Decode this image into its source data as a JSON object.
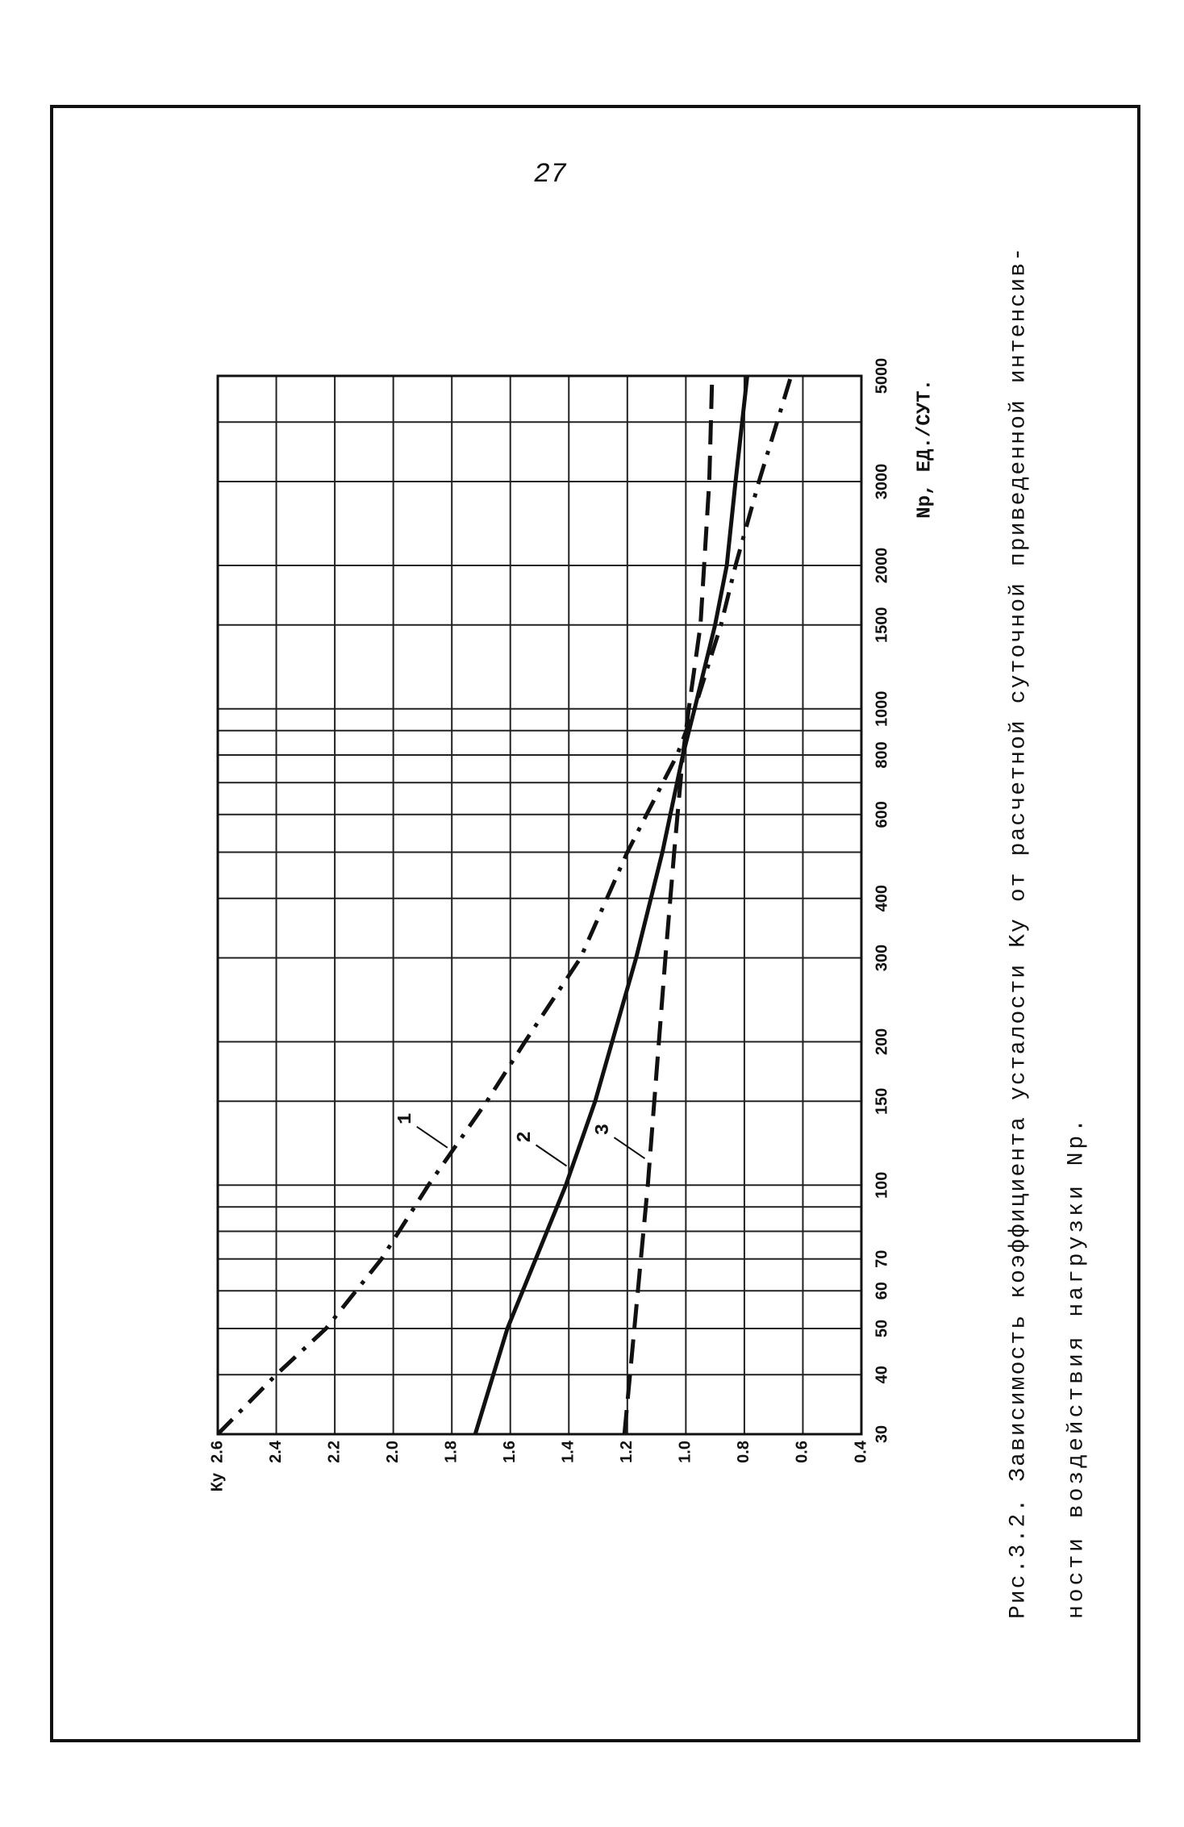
{
  "page": {
    "number": "27"
  },
  "chart_data": {
    "type": "line",
    "x_label": "Np, ЕД./СУТ.",
    "y_label": "Ку",
    "caption": [
      "Рис.3.2. Зависимость коэффициента усталости Kу от расчетной суточной приведенной интенсив-",
      "ности воздействия нагрузки Np."
    ],
    "xscale": "log",
    "xlim": [
      30,
      5000
    ],
    "ylim": [
      0.4,
      2.6
    ],
    "grid": true,
    "xticks": [
      30,
      40,
      50,
      60,
      70,
      {
        "value": 80,
        "label": null
      },
      {
        "value": 90,
        "label": null
      },
      100,
      150,
      200,
      300,
      400,
      {
        "value": 500,
        "label": null
      },
      600,
      {
        "value": 700,
        "label": null
      },
      800,
      {
        "value": 900,
        "label": null
      },
      1000,
      1500,
      2000,
      3000,
      {
        "value": 4000,
        "label": null
      },
      5000
    ],
    "yticks": [
      2.6,
      2.4,
      2.2,
      {
        "value": 2,
        "label": "2.0"
      },
      1.8,
      1.6,
      1.4,
      1.2,
      {
        "value": 1,
        "label": "1.0"
      },
      0.8,
      0.6,
      0.4
    ],
    "series": [
      {
        "name": "1",
        "color": "#111111",
        "style": "dash-dot",
        "x": [
          30,
          40,
          50,
          70,
          100,
          150,
          200,
          300,
          500,
          800,
          1000,
          1500,
          2000,
          3000,
          5000
        ],
        "values": [
          2.6,
          2.4,
          2.23,
          2.04,
          1.88,
          1.68,
          1.55,
          1.36,
          1.2,
          1.03,
          0.97,
          0.88,
          0.83,
          0.75,
          0.64
        ]
      },
      {
        "name": "2",
        "color": "#111111",
        "style": "solid",
        "x": [
          30,
          50,
          100,
          150,
          300,
          500,
          800,
          1000,
          1500,
          2000,
          3000,
          5000
        ],
        "values": [
          1.72,
          1.61,
          1.41,
          1.31,
          1.17,
          1.08,
          1.01,
          0.97,
          0.9,
          0.86,
          0.83,
          0.79
        ]
      },
      {
        "name": "3",
        "color": "#111111",
        "style": "dashed",
        "x": [
          30,
          100,
          300,
          500,
          800,
          1000,
          1500,
          3000,
          5000
        ],
        "values": [
          1.21,
          1.13,
          1.07,
          1.04,
          1.01,
          0.99,
          0.95,
          0.92,
          0.91
        ]
      }
    ]
  }
}
